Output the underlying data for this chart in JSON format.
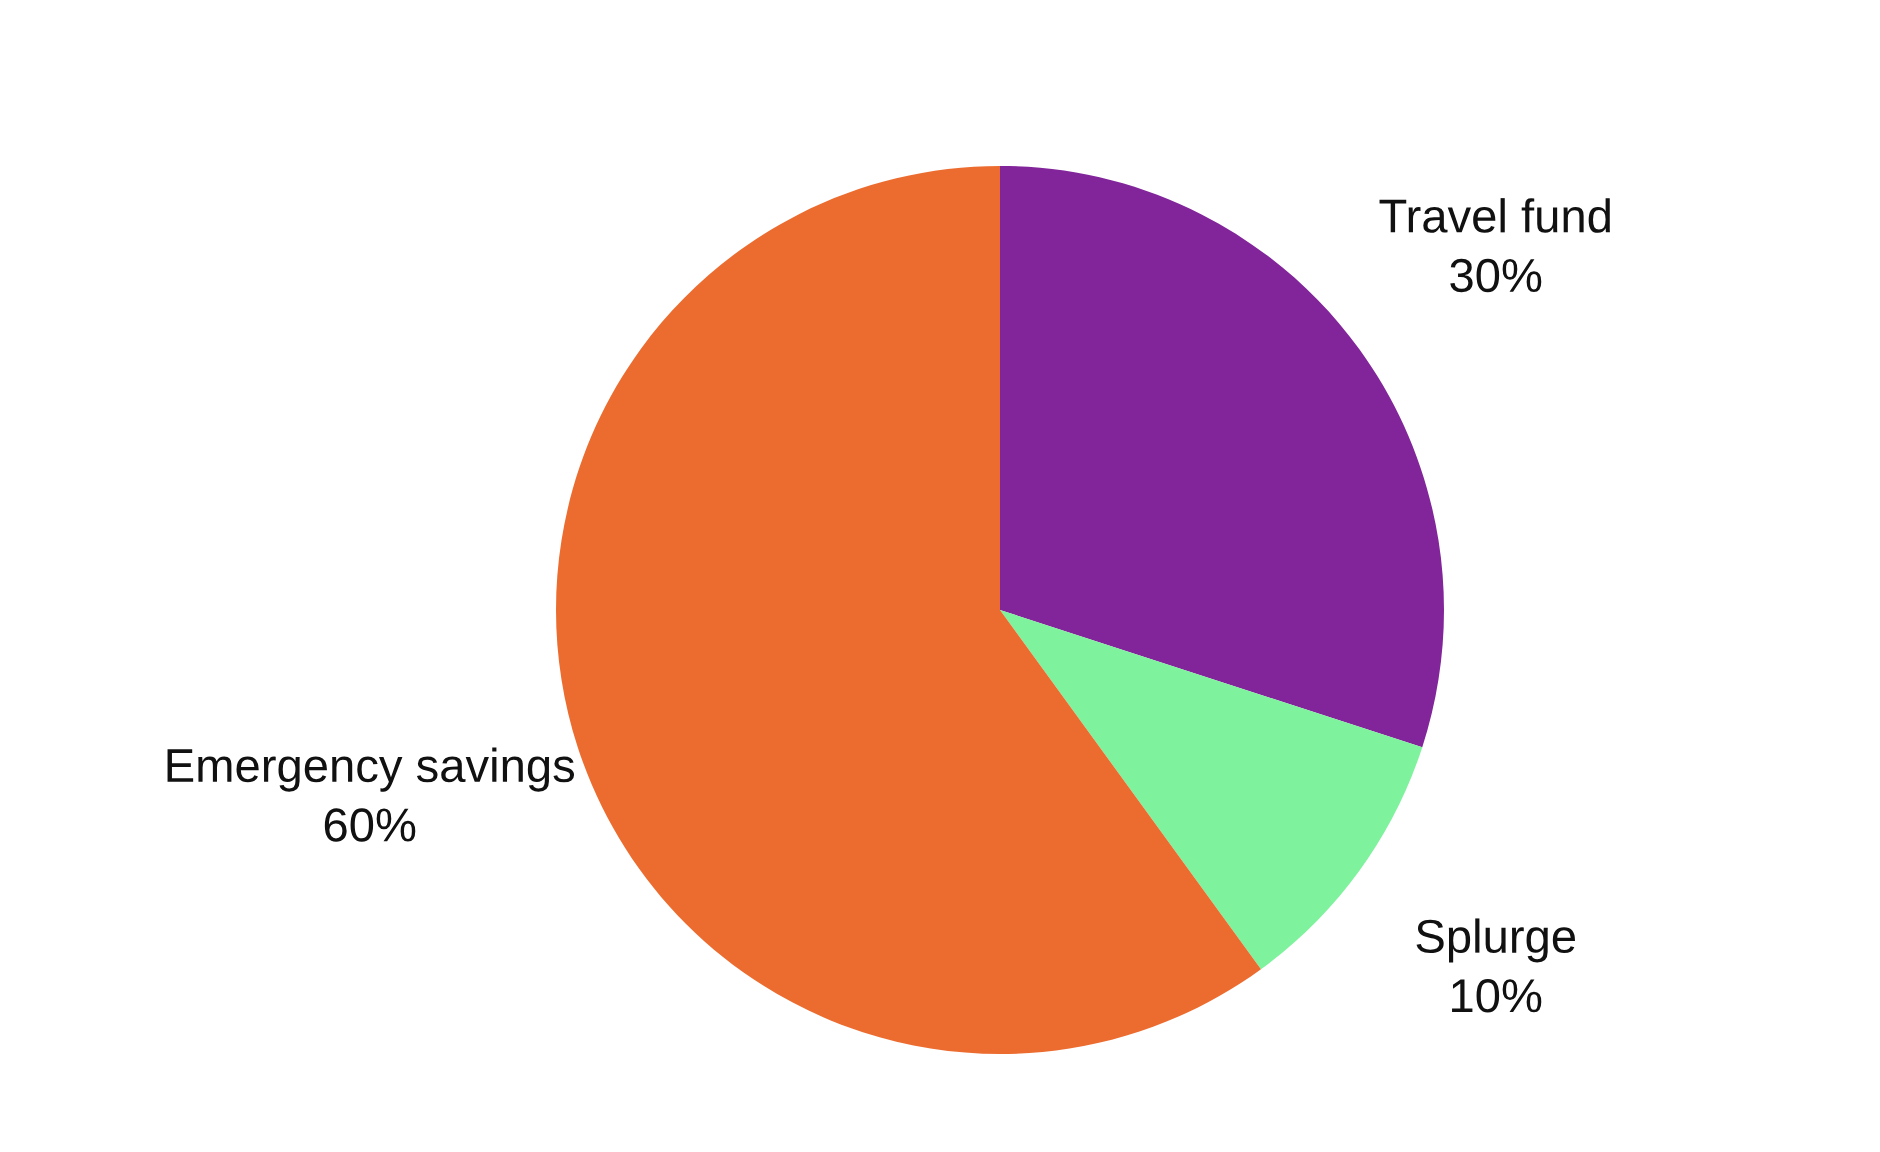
{
  "chart_data": {
    "type": "pie",
    "categories": [
      "Travel fund",
      "Splurge",
      "Emergency savings"
    ],
    "values": [
      30,
      10,
      60
    ],
    "value_labels": [
      "30%",
      "10%",
      "60%"
    ],
    "colors": [
      "#82249a",
      "#7ef29c",
      "#ec6c30"
    ]
  }
}
